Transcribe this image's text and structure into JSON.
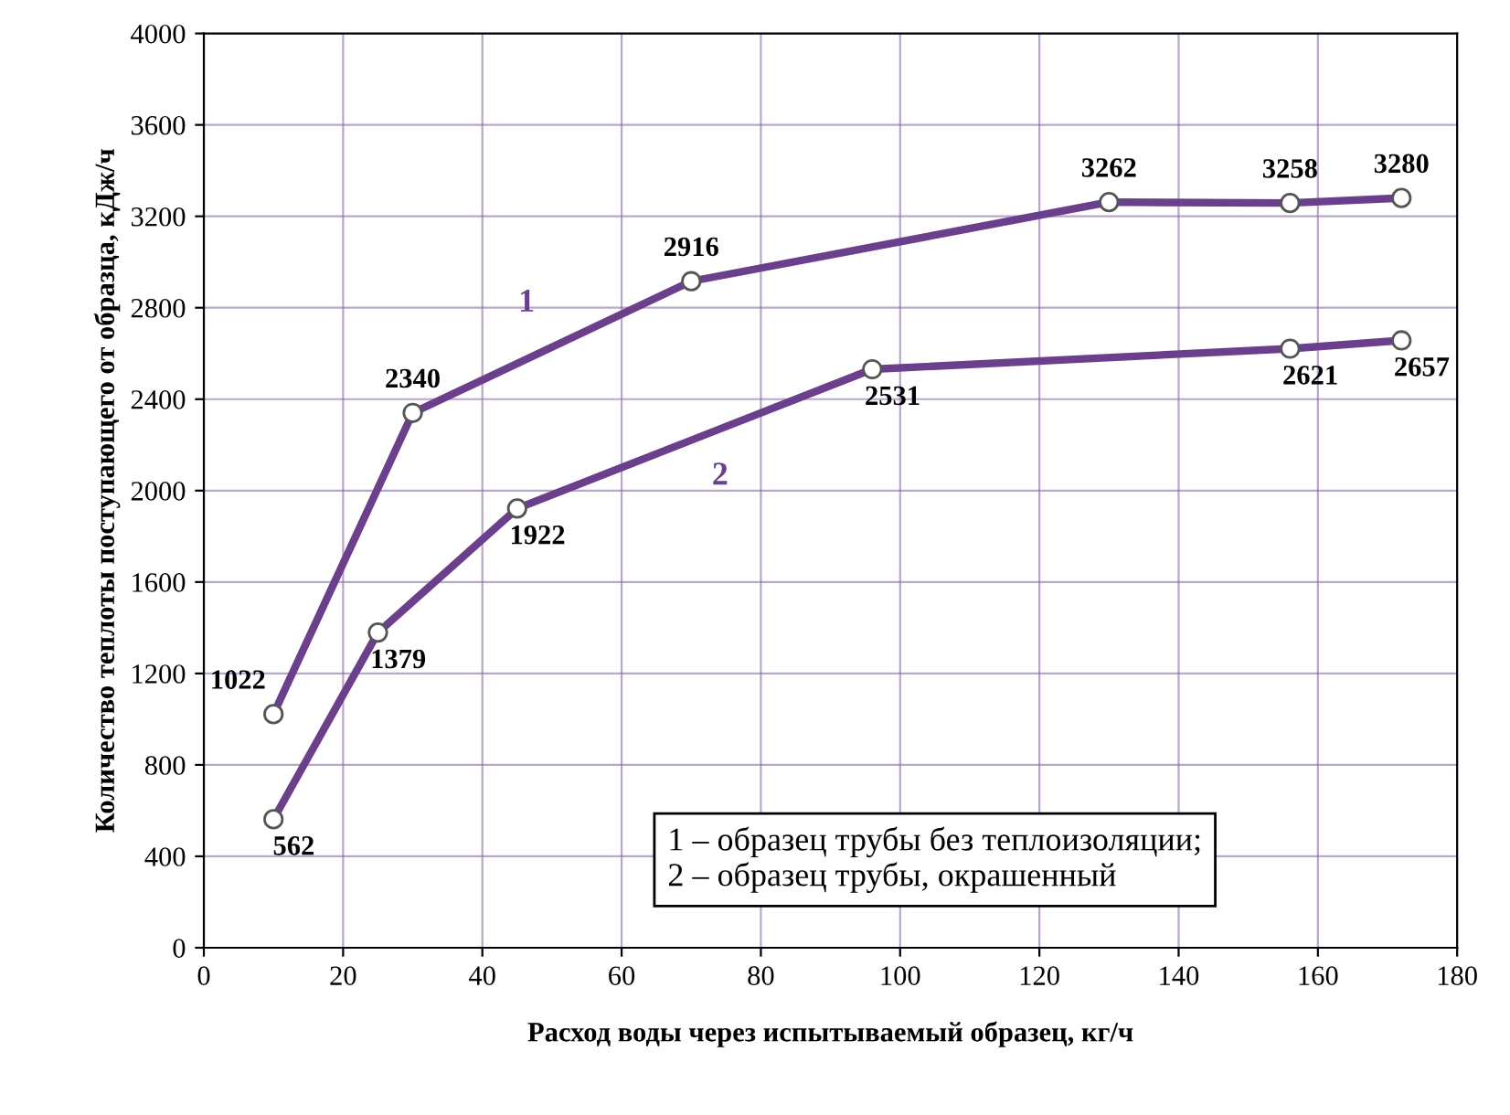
{
  "chart_data": {
    "type": "line",
    "xlabel": "Расход воды через испытываемый образец, кг/ч",
    "ylabel": "Количество теплоты поступающего от образца, кДж/ч",
    "xlim": [
      0,
      180
    ],
    "xticks": [
      0,
      20,
      40,
      60,
      80,
      100,
      120,
      140,
      160,
      180
    ],
    "ylim": [
      0,
      4000
    ],
    "yticks": [
      0,
      400,
      800,
      1200,
      1600,
      2000,
      2400,
      2800,
      3200,
      3600,
      4000
    ],
    "grid": true,
    "marker": "circle",
    "line_style": "solid",
    "legend": false,
    "series": [
      {
        "name": "1",
        "color": "#6b3f8c",
        "x": [
          10,
          30,
          70,
          130,
          156,
          172
        ],
        "values": [
          1022,
          2340,
          2916,
          3262,
          3258,
          3280
        ],
        "value_labels": [
          "1022",
          "2340",
          "2916",
          "3262",
          "3258",
          "3280"
        ]
      },
      {
        "name": "2",
        "color": "#6b3f8c",
        "x": [
          10,
          25,
          45,
          96,
          156,
          172
        ],
        "values": [
          562,
          1379,
          1922,
          2531,
          2621,
          2657
        ],
        "value_labels": [
          "562",
          "1379",
          "1922",
          "2531",
          "2621",
          "2657"
        ]
      }
    ],
    "annotations": [
      "1 – образец трубы без теплоизоляции;",
      "2 – образец трубы, окрашенный"
    ]
  }
}
